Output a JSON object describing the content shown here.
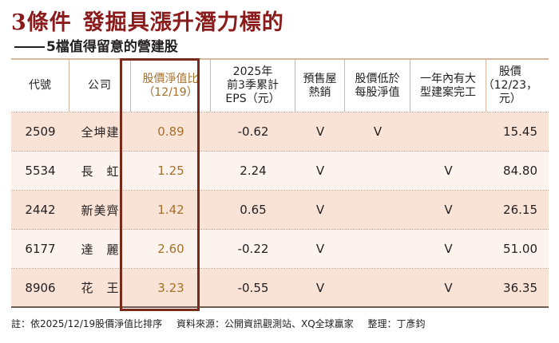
{
  "title": {
    "main_part1": "3條件",
    "main_part2": "發掘具漲升潛力標的",
    "subtitle": "5檔值得留意的營建股"
  },
  "colors": {
    "title": "#8b1a1a",
    "highlight_border": "#7a2a18",
    "pb_value": "#a5702b",
    "row_odd": "#f9e3d6",
    "row_even": "#fdf3ee"
  },
  "table": {
    "headers": [
      "代號",
      "公司",
      "股價淨值比\n（12/19）",
      "2025年\n前3季累計\nEPS（元）",
      "預售屋\n熱銷",
      "股價低於\n每股淨值",
      "一年內有大\n型建案完工",
      "股價\n（12/23，\n元）"
    ],
    "rows": [
      {
        "code": "2509",
        "company": "全坤建",
        "pb": "0.89",
        "eps": "-0.62",
        "presale": "V",
        "below_nav": "V",
        "big_project": "",
        "price": "15.45"
      },
      {
        "code": "5534",
        "company": "長　虹",
        "pb": "1.25",
        "eps": "2.24",
        "presale": "V",
        "below_nav": "",
        "big_project": "V",
        "price": "84.80"
      },
      {
        "code": "2442",
        "company": "新美齊",
        "pb": "1.42",
        "eps": "0.65",
        "presale": "V",
        "below_nav": "",
        "big_project": "V",
        "price": "26.15"
      },
      {
        "code": "6177",
        "company": "達　麗",
        "pb": "2.60",
        "eps": "-0.22",
        "presale": "V",
        "below_nav": "",
        "big_project": "V",
        "price": "51.00"
      },
      {
        "code": "8906",
        "company": "花　王",
        "pb": "3.23",
        "eps": "-0.55",
        "presale": "V",
        "below_nav": "",
        "big_project": "V",
        "price": "36.35"
      }
    ]
  },
  "footer": {
    "note": "註：依2025/12/19股價淨值比排序",
    "source": "資料來源：公開資訊觀測站、XQ全球贏家",
    "editor": "整理：丁彥鈞"
  }
}
